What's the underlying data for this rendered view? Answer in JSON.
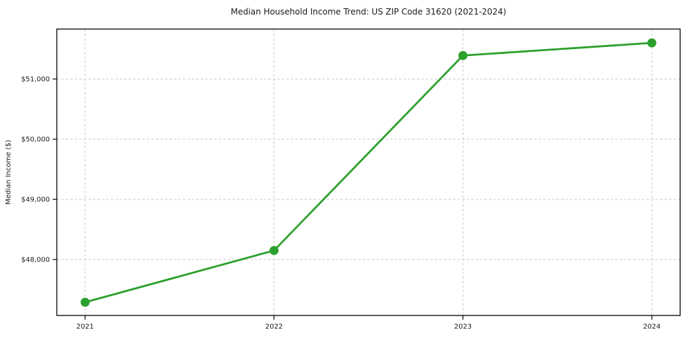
{
  "chart_data": {
    "type": "line",
    "title": "Median Household Income Trend: US ZIP Code 31620 (2021-2024)",
    "xlabel": "",
    "ylabel": "Median Income ($)",
    "x": [
      2021,
      2022,
      2023,
      2024
    ],
    "x_tick_labels": [
      "2021",
      "2022",
      "2023",
      "2024"
    ],
    "values": [
      47290,
      48150,
      51390,
      51600
    ],
    "y_ticks": [
      48000,
      49000,
      50000,
      51000
    ],
    "y_tick_labels": [
      "$48,000",
      "$49,000",
      "$50,000",
      "$51,000"
    ],
    "xlim": [
      2020.85,
      2024.15
    ],
    "ylim": [
      47070,
      51830
    ],
    "grid": true,
    "grid_style": "dashed",
    "legend": "none",
    "marker": "circle",
    "colors": {
      "line": "#2ca02c",
      "marker": "#2ca02c",
      "grid": "#c9c9c9",
      "frame": "#000000",
      "text": "#1a1a1a",
      "background": "#ffffff"
    }
  }
}
